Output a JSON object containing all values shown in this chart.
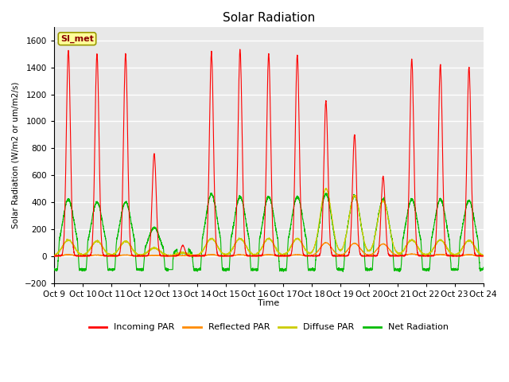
{
  "title": "Solar Radiation",
  "ylabel": "Solar Radiation (W/m2 or um/m2/s)",
  "xlabel": "Time",
  "xlim": [
    0,
    15
  ],
  "ylim": [
    -200,
    1700
  ],
  "yticks": [
    -200,
    0,
    200,
    400,
    600,
    800,
    1000,
    1200,
    1400,
    1600
  ],
  "xtick_labels": [
    "Oct 9",
    "Oct 10",
    "Oct 11",
    "Oct 12",
    "Oct 13",
    "Oct 14",
    "Oct 15",
    "Oct 16",
    "Oct 17",
    "Oct 18",
    "Oct 19",
    "Oct 20",
    "Oct 21",
    "Oct 22",
    "Oct 23",
    "Oct 24"
  ],
  "station_label": "SI_met",
  "colors": {
    "incoming": "#FF0000",
    "reflected": "#FF8C00",
    "diffuse": "#CCCC00",
    "net": "#00BB00"
  },
  "legend_labels": [
    "Incoming PAR",
    "Reflected PAR",
    "Diffuse PAR",
    "Net Radiation"
  ],
  "night_net": -100,
  "day_peaks_in": [
    1530,
    1500,
    1500,
    760,
    265,
    1510,
    1530,
    1500,
    1490,
    1150,
    900,
    590,
    1460,
    1420,
    1400
  ],
  "day_peaks_net": [
    420,
    400,
    400,
    210,
    80,
    460,
    440,
    440,
    440,
    460,
    450,
    420,
    420,
    420,
    410
  ],
  "day_peaks_diff": [
    120,
    110,
    110,
    60,
    25,
    130,
    130,
    130,
    130,
    500,
    450,
    410,
    120,
    120,
    115
  ],
  "day_peaks_refl": [
    10,
    8,
    8,
    5,
    3,
    10,
    10,
    10,
    10,
    100,
    95,
    90,
    15,
    12,
    10
  ]
}
